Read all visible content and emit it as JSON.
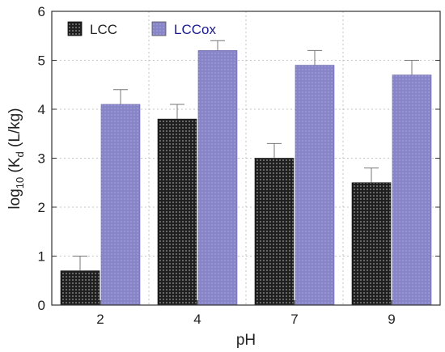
{
  "chart_data": {
    "type": "bar",
    "categories": [
      "2",
      "4",
      "7",
      "9"
    ],
    "series": [
      {
        "name": "LCC",
        "values": [
          0.7,
          3.8,
          3.0,
          2.5
        ],
        "errors": [
          0.3,
          0.3,
          0.3,
          0.3
        ],
        "color": "#2e2e2e"
      },
      {
        "name": "LCCox",
        "values": [
          4.1,
          5.2,
          4.9,
          4.7
        ],
        "errors": [
          0.3,
          0.2,
          0.3,
          0.3
        ],
        "color": "#8b88c9"
      }
    ],
    "xlabel": "pH",
    "ylabel_main": "log",
    "ylabel_sub1": "10",
    "ylabel_mid": " (K",
    "ylabel_sub2": "d",
    "ylabel_end": " (L/kg)",
    "ylim": [
      0,
      6
    ],
    "yticks": [
      "0",
      "1",
      "2",
      "3",
      "4",
      "5",
      "6"
    ],
    "grid": true,
    "legend": "top-left",
    "legend_text_colors": [
      "#222222",
      "#1a1a8c"
    ]
  }
}
